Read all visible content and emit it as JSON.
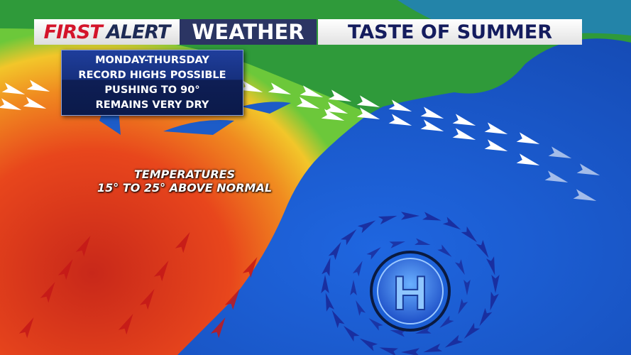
{
  "header": {
    "brand_first": "FIRST",
    "brand_alert": "ALERT",
    "brand_weather": "WEATHER",
    "title": "TASTE OF SUMMER"
  },
  "info_box": {
    "lines": [
      "MONDAY-THURSDAY",
      "RECORD HIGHS POSSIBLE",
      "PUSHING TO 90°",
      "REMAINS VERY DRY"
    ]
  },
  "map_labels": {
    "temp_line1": "TEMPERATURES",
    "temp_line2": "15° TO 25° ABOVE NORMAL",
    "high_pressure": "H"
  },
  "colors": {
    "brand_red": "#d4142a",
    "banner_navy": "#2b3563",
    "title_navy": "#141c5e",
    "ocean": "#1c5fd0",
    "heat": "#e23a1a"
  }
}
